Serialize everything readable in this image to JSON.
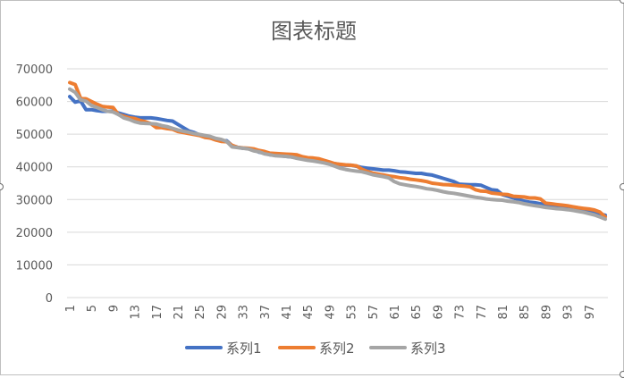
{
  "chart_data": {
    "type": "line",
    "title": "图表标题",
    "xlabel": "",
    "ylabel": "",
    "ylim": [
      0,
      70000
    ],
    "yticks": [
      0,
      10000,
      20000,
      30000,
      40000,
      50000,
      60000,
      70000
    ],
    "ytick_labels": [
      "0",
      "10000",
      "20000",
      "30000",
      "40000",
      "50000",
      "60000",
      "70000"
    ],
    "x": [
      1,
      2,
      3,
      4,
      5,
      6,
      7,
      8,
      9,
      10,
      11,
      12,
      13,
      14,
      15,
      16,
      17,
      18,
      19,
      20,
      21,
      22,
      23,
      24,
      25,
      26,
      27,
      28,
      29,
      30,
      31,
      32,
      33,
      34,
      35,
      36,
      37,
      38,
      39,
      40,
      41,
      42,
      43,
      44,
      45,
      46,
      47,
      48,
      49,
      50,
      51,
      52,
      53,
      54,
      55,
      56,
      57,
      58,
      59,
      60,
      61,
      62,
      63,
      64,
      65,
      66,
      67,
      68,
      69,
      70,
      71,
      72,
      73,
      74,
      75,
      76,
      77,
      78,
      79,
      80,
      81,
      82,
      83,
      84,
      85,
      86,
      87,
      88,
      89,
      90,
      91,
      92,
      93,
      94,
      95,
      96,
      97,
      98,
      99,
      100
    ],
    "xtick_labels": [
      "1",
      "5",
      "9",
      "13",
      "17",
      "21",
      "25",
      "29",
      "33",
      "37",
      "41",
      "45",
      "49",
      "53",
      "57",
      "61",
      "65",
      "69",
      "73",
      "77",
      "81",
      "85",
      "89",
      "93",
      "97"
    ],
    "grid": true,
    "legend_position": "bottom",
    "series": [
      {
        "name": "系列1",
        "color": "#4472C4",
        "values": [
          61500,
          59800,
          60200,
          57500,
          57500,
          57200,
          57000,
          57000,
          57000,
          56500,
          56000,
          55500,
          55200,
          55000,
          55000,
          55000,
          54800,
          54500,
          54200,
          54000,
          53000,
          52000,
          51000,
          50500,
          49800,
          49500,
          48800,
          48300,
          48000,
          48000,
          46500,
          46000,
          45700,
          45600,
          45200,
          44500,
          44200,
          43700,
          43600,
          43400,
          43200,
          43000,
          42800,
          42600,
          42500,
          42200,
          41800,
          41500,
          41200,
          41000,
          40700,
          40500,
          40500,
          40200,
          39800,
          39600,
          39400,
          39200,
          39000,
          39000,
          38800,
          38500,
          38400,
          38200,
          38000,
          38000,
          37700,
          37500,
          37000,
          36500,
          36000,
          35500,
          34700,
          34600,
          34500,
          34500,
          34400,
          33700,
          33000,
          32800,
          31500,
          31000,
          30500,
          30000,
          29500,
          29200,
          29000,
          28700,
          28500,
          28300,
          28000,
          27800,
          27500,
          27300,
          27000,
          26600,
          26300,
          26000,
          25600,
          25200
        ]
      },
      {
        "name": "系列2",
        "color": "#ED7D31",
        "values": [
          65800,
          65200,
          61000,
          60800,
          60000,
          59200,
          58500,
          58300,
          58200,
          56000,
          55500,
          55000,
          54800,
          54200,
          53800,
          53200,
          52000,
          52000,
          51700,
          51500,
          50800,
          50500,
          50200,
          49900,
          49600,
          49000,
          48800,
          48200,
          47800,
          47700,
          46600,
          46000,
          45800,
          45700,
          45500,
          45000,
          44700,
          44200,
          44100,
          44000,
          43900,
          43800,
          43700,
          43100,
          42800,
          42700,
          42500,
          42000,
          41500,
          41000,
          40800,
          40600,
          40500,
          40300,
          39300,
          38600,
          38100,
          37800,
          37500,
          37200,
          37000,
          36700,
          36500,
          36200,
          36000,
          35800,
          35500,
          35000,
          34800,
          34600,
          34500,
          34400,
          34200,
          34100,
          33900,
          33000,
          32600,
          32500,
          32000,
          31800,
          31600,
          31500,
          31000,
          30900,
          30800,
          30500,
          30500,
          30200,
          28900,
          28700,
          28500,
          28300,
          28100,
          27800,
          27500,
          27300,
          27100,
          26800,
          26200,
          24700
        ]
      },
      {
        "name": "系列3",
        "color": "#A5A5A5",
        "values": [
          63800,
          62800,
          60500,
          60100,
          58800,
          58200,
          57500,
          57000,
          56800,
          56000,
          55000,
          54500,
          53800,
          53400,
          53300,
          53200,
          53100,
          52600,
          52300,
          51800,
          51300,
          50900,
          50600,
          50200,
          49900,
          49600,
          49300,
          48700,
          48400,
          47800,
          46100,
          45900,
          45700,
          45500,
          44900,
          44600,
          44000,
          43700,
          43400,
          43300,
          43200,
          43000,
          42600,
          42300,
          42000,
          41800,
          41500,
          41200,
          40800,
          40200,
          39600,
          39200,
          38900,
          38700,
          38500,
          38100,
          37600,
          37300,
          37000,
          36600,
          35500,
          34800,
          34500,
          34200,
          34000,
          33700,
          33300,
          33100,
          32800,
          32400,
          32100,
          31900,
          31600,
          31300,
          31000,
          30700,
          30500,
          30200,
          30000,
          29900,
          29800,
          29500,
          29300,
          29100,
          28700,
          28400,
          28100,
          27900,
          27600,
          27400,
          27200,
          27100,
          26900,
          26700,
          26400,
          26100,
          25700,
          25300,
          24700,
          24000
        ]
      }
    ]
  }
}
